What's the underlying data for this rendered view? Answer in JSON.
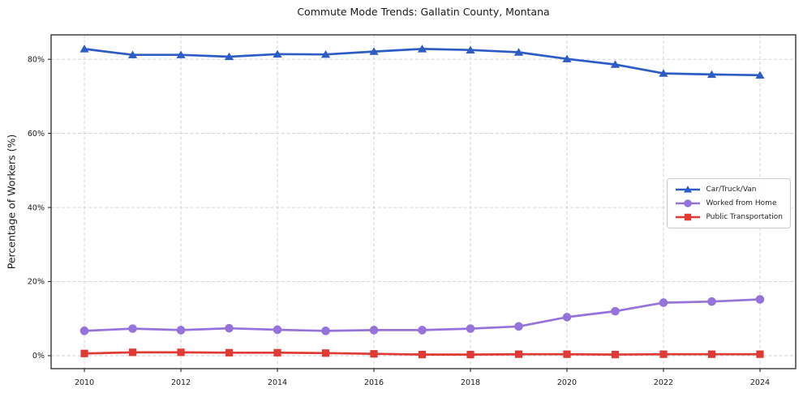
{
  "figure": {
    "title": "Commute Mode Trends: Gallatin County, Montana"
  },
  "chart_data": {
    "type": "line",
    "title": "Commute Mode Trends: Gallatin County, Montana",
    "xlabel": "",
    "ylabel": "Percentage of Workers (%)",
    "x": [
      2010,
      2011,
      2012,
      2013,
      2014,
      2015,
      2016,
      2017,
      2018,
      2019,
      2020,
      2021,
      2022,
      2023,
      2024
    ],
    "series": [
      {
        "name": "Car/Truck/Van",
        "marker": "triangle",
        "color": "#2d5cc5",
        "values": [
          82.8,
          81.2,
          81.2,
          80.7,
          81.4,
          81.3,
          82.1,
          82.8,
          82.5,
          81.9,
          80.1,
          78.6,
          76.2,
          75.9,
          75.7
        ]
      },
      {
        "name": "Worked from Home",
        "marker": "circle",
        "color": "#9673db",
        "values": [
          6.7,
          7.3,
          6.9,
          7.4,
          7.0,
          6.7,
          6.9,
          6.9,
          7.3,
          7.9,
          10.4,
          12.0,
          14.3,
          14.6,
          15.2
        ]
      },
      {
        "name": "Public Transportation",
        "marker": "square",
        "color": "#e13933",
        "values": [
          0.6,
          0.9,
          0.9,
          0.8,
          0.8,
          0.7,
          0.5,
          0.3,
          0.3,
          0.4,
          0.4,
          0.3,
          0.4,
          0.4,
          0.4
        ]
      }
    ],
    "x_tick_labels": [
      "2010",
      "2012",
      "2014",
      "2016",
      "2018",
      "2020",
      "2022",
      "2024"
    ],
    "x_tick_values": [
      2010,
      2012,
      2014,
      2016,
      2018,
      2020,
      2022,
      2024
    ],
    "y_tick_labels": [
      "0%",
      "20%",
      "40%",
      "60%",
      "80%"
    ],
    "y_tick_values": [
      0,
      20,
      40,
      60,
      80
    ],
    "xlim": [
      2009.31,
      2024.74
    ],
    "ylim": [
      -3.5,
      86.6
    ],
    "grid": true,
    "legend_position": "center-right",
    "legend_entries": [
      "Car/Truck/Van",
      "Worked from Home",
      "Public Transportation"
    ]
  },
  "colors": {
    "background": "#ffffff",
    "grid": "#cfcfcf",
    "spine": "#262626",
    "tick_text": "#1a1a1a"
  }
}
